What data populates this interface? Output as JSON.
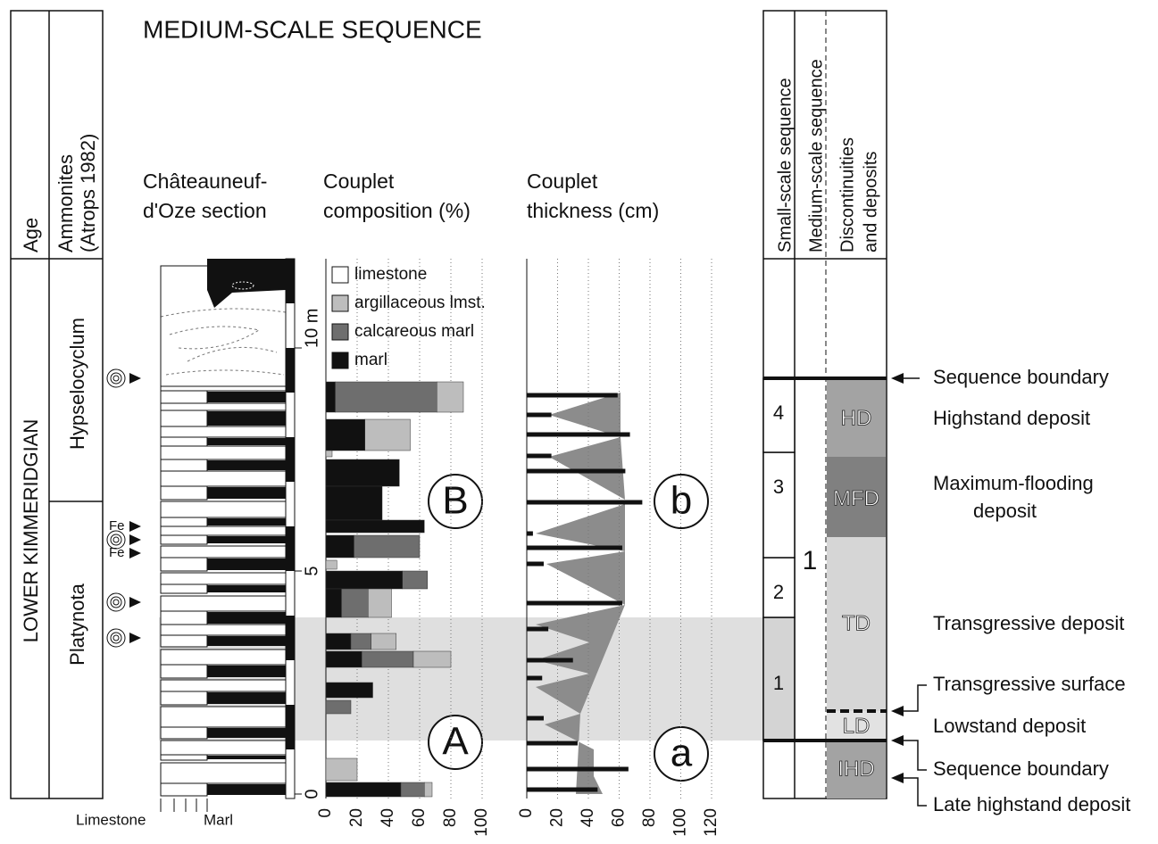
{
  "header": {
    "title": "MEDIUM-SCALE SEQUENCE"
  },
  "columns": {
    "age": "Age",
    "ammonites": [
      "Ammonites",
      "(Atrops 1982)"
    ],
    "section": [
      "Châteauneuf-",
      "d'Oze section"
    ],
    "composition": [
      "Couplet",
      "composition (%)"
    ],
    "thickness": [
      "Couplet",
      "thickness (cm)"
    ],
    "small_scale": "Small-scale sequence",
    "medium_scale": "Medium-scale sequence",
    "discontinuities": [
      "Discontinuities",
      "and deposits"
    ]
  },
  "stage": "LOWER KIMMERIDGIAN",
  "zones": [
    "Hypselocyclum",
    "Platynota"
  ],
  "markers": [
    "Fe",
    "Fe"
  ],
  "lithology_axis": [
    "Limestone",
    "Marl"
  ],
  "depth_axis": {
    "ylim": [
      0,
      12
    ],
    "ticks": [
      0,
      5,
      {
        "value": 10,
        "label": "10 m"
      }
    ]
  },
  "composition": {
    "legend": [
      {
        "name": "limestone",
        "color": "#ffffff"
      },
      {
        "name": "argillaceous lmst.",
        "color": "#bdbdbd"
      },
      {
        "name": "calcareous marl",
        "color": "#6e6e6e"
      },
      {
        "name": "marl",
        "color": "#111111"
      }
    ],
    "xlim": [
      0,
      100
    ],
    "xticks": [
      0,
      20,
      40,
      60,
      80,
      100
    ],
    "couplets": [
      {
        "top": 9.24,
        "base": 8.56,
        "values": [
          6,
          65,
          17
        ]
      },
      {
        "top": 8.4,
        "base": 7.7,
        "values": [
          25,
          0,
          29
        ]
      },
      {
        "top": 7.7,
        "base": 7.56,
        "values": [
          0,
          0,
          4
        ]
      },
      {
        "top": 7.5,
        "base": 6.9,
        "values": [
          47,
          0,
          0
        ]
      },
      {
        "top": 6.9,
        "base": 6.14,
        "values": [
          36,
          0,
          0
        ]
      },
      {
        "top": 6.14,
        "base": 5.86,
        "values": [
          63,
          0,
          0
        ]
      },
      {
        "top": 5.8,
        "base": 5.3,
        "values": [
          18,
          42,
          0
        ]
      },
      {
        "top": 5.24,
        "base": 5.04,
        "values": [
          0,
          0,
          7
        ]
      },
      {
        "top": 5.0,
        "base": 4.6,
        "values": [
          49,
          16,
          0
        ]
      },
      {
        "top": 4.6,
        "base": 3.96,
        "values": [
          10,
          17,
          15
        ]
      },
      {
        "top": 3.6,
        "base": 3.24,
        "values": [
          16,
          13,
          16
        ]
      },
      {
        "top": 3.2,
        "base": 2.84,
        "values": [
          23,
          33,
          24
        ]
      },
      {
        "top": 2.5,
        "base": 2.16,
        "values": [
          30,
          0,
          0
        ]
      },
      {
        "top": 2.1,
        "base": 1.8,
        "values": [
          0,
          16,
          0
        ]
      },
      {
        "top": 0.8,
        "base": 0.3,
        "values": [
          0,
          0,
          20
        ]
      },
      {
        "top": 0.26,
        "base": -0.06,
        "values": [
          48,
          15,
          5
        ]
      }
    ]
  },
  "thickness": {
    "xlim": [
      0,
      120
    ],
    "xticks": [
      0,
      20,
      40,
      60,
      80,
      100,
      120
    ],
    "couplets": [
      {
        "depth": 8.94,
        "value": 59
      },
      {
        "depth": 8.5,
        "value": 16
      },
      {
        "depth": 8.06,
        "value": 67
      },
      {
        "depth": 7.58,
        "value": 16
      },
      {
        "depth": 7.24,
        "value": 64
      },
      {
        "depth": 6.54,
        "value": 75
      },
      {
        "depth": 5.84,
        "value": 4
      },
      {
        "depth": 5.52,
        "value": 62
      },
      {
        "depth": 5.16,
        "value": 11
      },
      {
        "depth": 4.28,
        "value": 62
      },
      {
        "depth": 3.7,
        "value": 14
      },
      {
        "depth": 3.0,
        "value": 30
      },
      {
        "depth": 2.6,
        "value": 10
      },
      {
        "depth": 1.7,
        "value": 11
      },
      {
        "depth": 1.14,
        "value": 33
      },
      {
        "depth": 0.56,
        "value": 66
      },
      {
        "depth": 0.1,
        "value": 46
      }
    ]
  },
  "letters": [
    "A",
    "B",
    "a",
    "b"
  ],
  "small_scale": [
    "1",
    "2",
    "3",
    "4"
  ],
  "medium_scale": "1",
  "deposits": [
    "HD",
    "MFD",
    "TD",
    "LD",
    "IHD"
  ],
  "annotations": [
    "Sequence boundary",
    "Highstand deposit",
    "Maximum-flooding",
    "deposit",
    "Transgressive deposit",
    "Transgressive surface",
    "Lowstand deposit",
    "Sequence boundary",
    "Late highstand deposit"
  ]
}
